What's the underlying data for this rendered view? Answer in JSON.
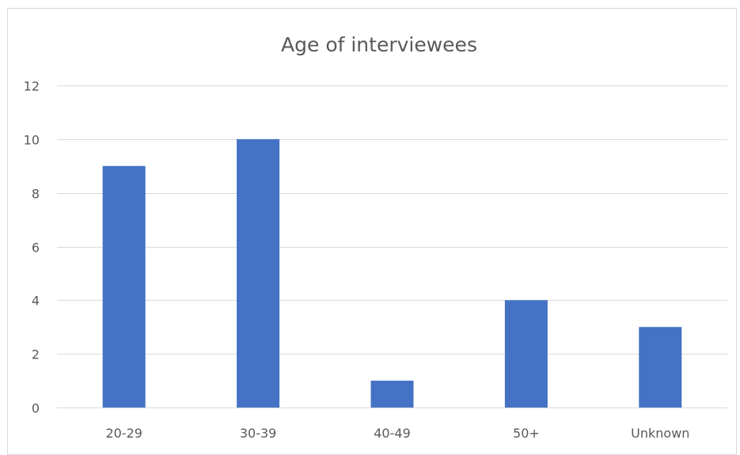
{
  "chart_data": {
    "type": "bar",
    "title": "Age of interviewees",
    "categories": [
      "20-29",
      "30-39",
      "40-49",
      "50+",
      "Unknown"
    ],
    "values": [
      9,
      10,
      1,
      4,
      3
    ],
    "ylim": [
      0,
      12
    ],
    "yticks": [
      0,
      2,
      4,
      6,
      8,
      10,
      12
    ],
    "ytick_labels": [
      "0",
      "2",
      "4",
      "6",
      "8",
      "10",
      "12"
    ],
    "grid": true,
    "legend": "none",
    "bar_color": "#4472c4",
    "grid_color": "#d9d9d9",
    "text_color": "#595959"
  }
}
